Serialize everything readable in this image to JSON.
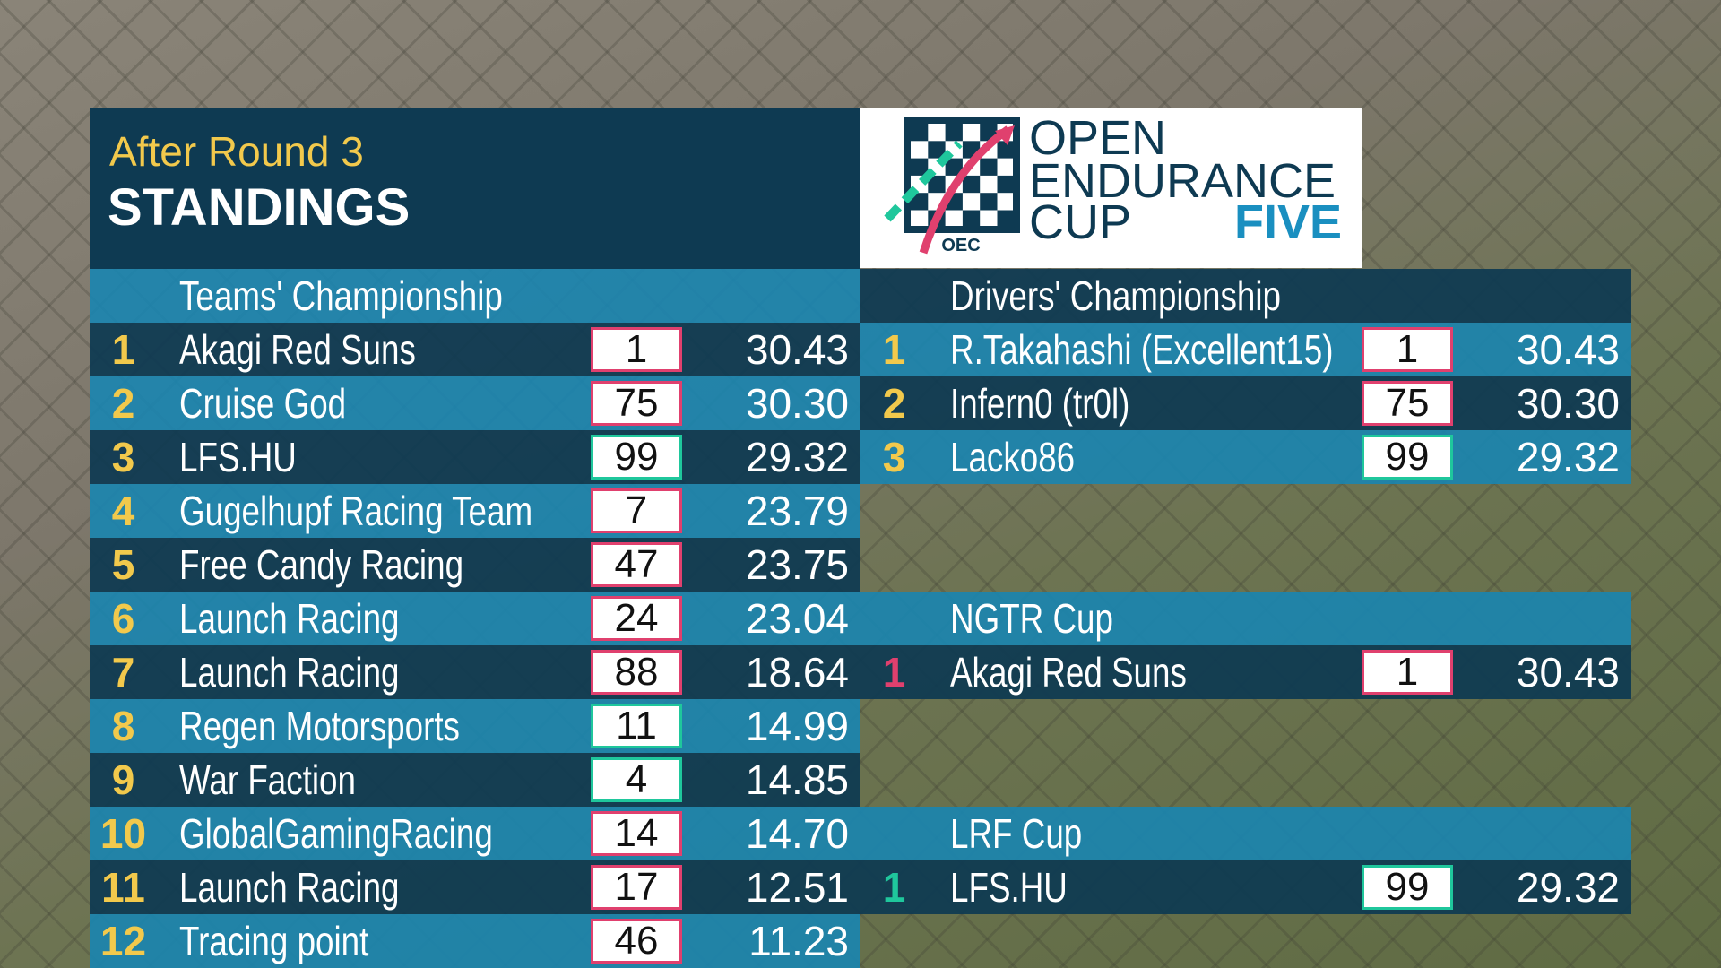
{
  "header": {
    "subtitle": "After Round 3",
    "title": "STANDINGS"
  },
  "logo": {
    "lines": [
      "OPEN",
      "ENDURANCE",
      "CUP"
    ],
    "accent": "FIVE",
    "badge": "OEC"
  },
  "sections": [
    {
      "title": "Teams' Championship",
      "rows": [
        {
          "pos": 1,
          "name": "Akagi Red Suns",
          "number": 1,
          "points": "30.43",
          "box_color": "#e0406e"
        },
        {
          "pos": 2,
          "name": "Cruise God",
          "number": 75,
          "points": "30.30",
          "box_color": "#e0406e"
        },
        {
          "pos": 3,
          "name": "LFS.HU",
          "number": 99,
          "points": "29.32",
          "box_color": "#1fc79c"
        },
        {
          "pos": 4,
          "name": "Gugelhupf Racing Team",
          "number": 7,
          "points": "23.79",
          "box_color": "#e0406e"
        },
        {
          "pos": 5,
          "name": "Free Candy Racing",
          "number": 47,
          "points": "23.75",
          "box_color": "#e0406e"
        },
        {
          "pos": 6,
          "name": "Launch Racing",
          "number": 24,
          "points": "23.04",
          "box_color": "#e0406e"
        },
        {
          "pos": 7,
          "name": "Launch Racing",
          "number": 88,
          "points": "18.64",
          "box_color": "#e0406e"
        },
        {
          "pos": 8,
          "name": "Regen Motorsports",
          "number": 11,
          "points": "14.99",
          "box_color": "#1fc79c"
        },
        {
          "pos": 9,
          "name": "War Faction",
          "number": 4,
          "points": "14.85",
          "box_color": "#1fc79c"
        },
        {
          "pos": 10,
          "name": "GlobalGamingRacing",
          "number": 14,
          "points": "14.70",
          "box_color": "#e0406e"
        },
        {
          "pos": 11,
          "name": "Launch Racing",
          "number": 17,
          "points": "12.51",
          "box_color": "#e0406e"
        },
        {
          "pos": 12,
          "name": "Tracing point",
          "number": 46,
          "points": "11.23",
          "box_color": "#e0406e"
        }
      ]
    },
    {
      "title": "Drivers' Championship",
      "rows": [
        {
          "pos": 1,
          "name": "R.Takahashi (Excellent15)",
          "number": 1,
          "points": "30.43",
          "box_color": "#e0406e"
        },
        {
          "pos": 2,
          "name": "Infern0 (tr0l)",
          "number": 75,
          "points": "30.30",
          "box_color": "#e0406e"
        },
        {
          "pos": 3,
          "name": "Lacko86",
          "number": 99,
          "points": "29.32",
          "box_color": "#1fc79c"
        }
      ]
    },
    {
      "title": "NGTR Cup",
      "pos_color": "#e0406e",
      "rows": [
        {
          "pos": 1,
          "name": "Akagi Red Suns",
          "number": 1,
          "points": "30.43",
          "box_color": "#e0406e"
        }
      ]
    },
    {
      "title": "LRF Cup",
      "pos_color": "#1fc79c",
      "rows": [
        {
          "pos": 1,
          "name": "LFS.HU",
          "number": 99,
          "points": "29.32",
          "box_color": "#1fc79c"
        }
      ]
    }
  ]
}
